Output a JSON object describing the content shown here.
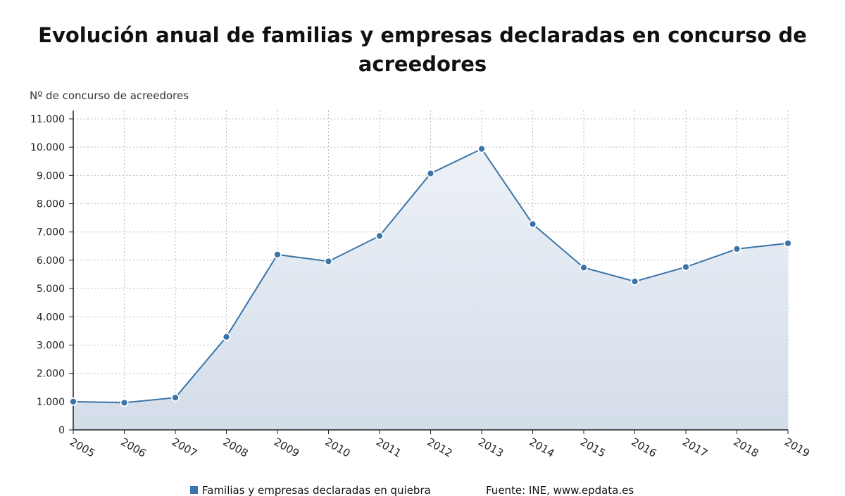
{
  "title": "Evolución anual de familias y empresas declaradas en concurso de acreedores",
  "legend_label": "Familias y empresas declaradas en quiebra",
  "source": "Fuente: INE, www.epdata.es",
  "colors": {
    "line": "#3a74a8",
    "marker_fill": "#3a74a8",
    "marker_stroke": "#ffffff",
    "area_top": "#edf1f7",
    "area_bottom": "#d3dde9",
    "grid": "#bbbbbb"
  },
  "chart_data": {
    "type": "area",
    "title": "Evolución anual de familias y empresas declaradas en concurso de acreedores",
    "ylabel": "Nº de concurso de acreedores",
    "xlabel": "",
    "grid": true,
    "ylim": [
      0,
      11000
    ],
    "yticks": [
      0,
      1000,
      2000,
      3000,
      4000,
      5000,
      6000,
      7000,
      8000,
      9000,
      10000,
      11000
    ],
    "ytick_labels": [
      "0",
      "1.000",
      "2.000",
      "3.000",
      "4.000",
      "5.000",
      "6.000",
      "7.000",
      "8.000",
      "9.000",
      "10.000",
      "11.000"
    ],
    "categories": [
      "2005",
      "2006",
      "2007",
      "2008",
      "2009",
      "2010",
      "2011",
      "2012",
      "2013",
      "2014",
      "2015",
      "2016",
      "2017",
      "2018",
      "2019"
    ],
    "series": [
      {
        "name": "Familias y empresas declaradas en quiebra",
        "values": [
          1000,
          960,
          1140,
          3290,
          6200,
          5960,
          6860,
          9070,
          9940,
          7280,
          5740,
          5250,
          5760,
          6400,
          6600
        ]
      }
    ]
  }
}
